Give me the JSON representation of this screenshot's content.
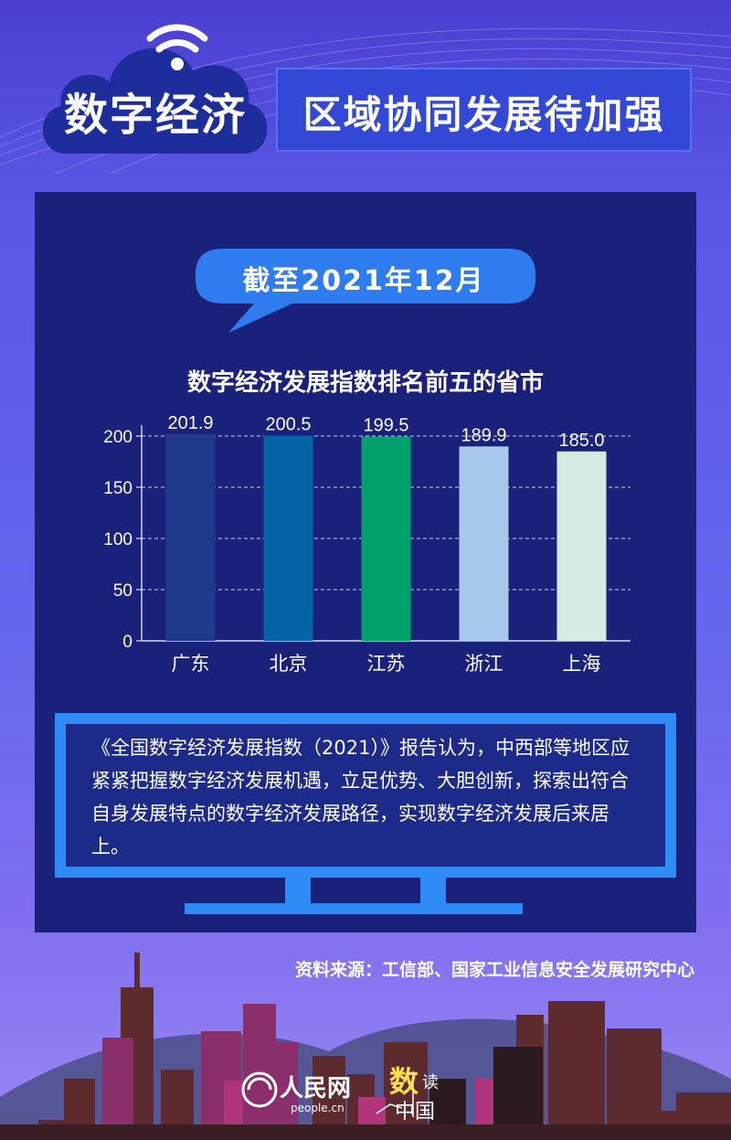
{
  "header": {
    "brand_title": "数字经济",
    "subtitle": "区域协同发展待加强"
  },
  "date_label": "截至2021年12月",
  "chart_data": {
    "type": "bar",
    "title": "数字经济发展指数排名前五的省市",
    "categories": [
      "广东",
      "北京",
      "江苏",
      "浙江",
      "上海"
    ],
    "values": [
      201.9,
      200.5,
      199.5,
      189.9,
      185.0
    ],
    "value_labels": [
      "201.9",
      "200.5",
      "199.5",
      "189.9",
      "185.0"
    ],
    "colors": [
      "#1f3a8a",
      "#0563a8",
      "#00a06a",
      "#a9c9ec",
      "#d3ebe3"
    ],
    "ylim": [
      0,
      200
    ],
    "yticks": [
      0,
      50,
      100,
      150,
      200
    ],
    "grid": true,
    "xlabel": "",
    "ylabel": ""
  },
  "report_text": "《全国数字经济发展指数（2021）》报告认为，中西部等地区应紧紧把握数字经济发展机遇，立足优势、大胆创新，探索出符合自身发展特点的数字经济发展路径，实现数字经济发展后来居上。",
  "source": "资料来源：工信部、国家工业信息安全发展研究中心",
  "logo": {
    "people_cn": "人民网",
    "people_url": "people.cn",
    "shu": "数",
    "du": "读",
    "zhongguo": "中国"
  },
  "icons": [
    "wifi-icon",
    "cloud-icon",
    "tv-icon"
  ]
}
